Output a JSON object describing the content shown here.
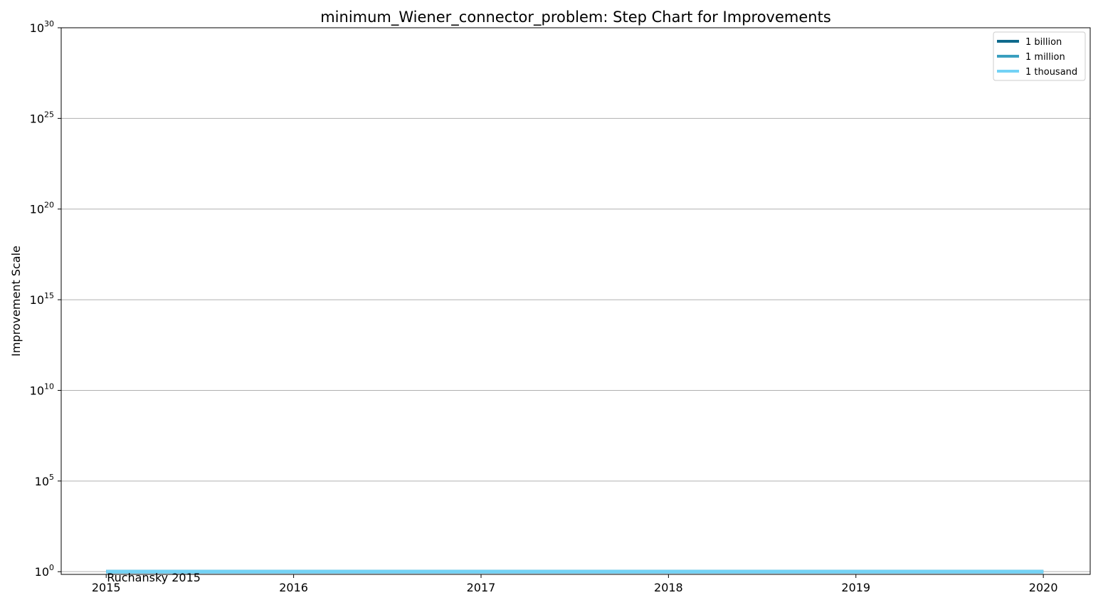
{
  "chart_data": {
    "type": "line",
    "step": true,
    "title": "minimum_Wiener_connector_problem: Step Chart for Improvements",
    "xlabel": "",
    "ylabel": "Improvement Scale",
    "y_scale": "log",
    "y_base": 10,
    "xlim": [
      2014.76,
      2020.25
    ],
    "ylim_exponent": [
      -0.15,
      30
    ],
    "x_ticks": [
      2015,
      2016,
      2017,
      2018,
      2019,
      2020
    ],
    "y_tick_exponents": [
      0,
      5,
      10,
      15,
      20,
      25,
      30
    ],
    "grid": "y",
    "legend_position": "top-right",
    "series": [
      {
        "name": "1 billion",
        "color": "#0f6a8c",
        "x": [
          2015,
          2020
        ],
        "y": [
          1,
          1
        ]
      },
      {
        "name": "1 million",
        "color": "#3a9fbf",
        "x": [
          2015,
          2020
        ],
        "y": [
          1,
          1
        ]
      },
      {
        "name": "1 thousand",
        "color": "#73d2f5",
        "x": [
          2015,
          2020
        ],
        "y": [
          1,
          1
        ]
      }
    ],
    "annotations": [
      {
        "text": "Ruchansky 2015",
        "x": 2015,
        "y": 1
      }
    ]
  }
}
